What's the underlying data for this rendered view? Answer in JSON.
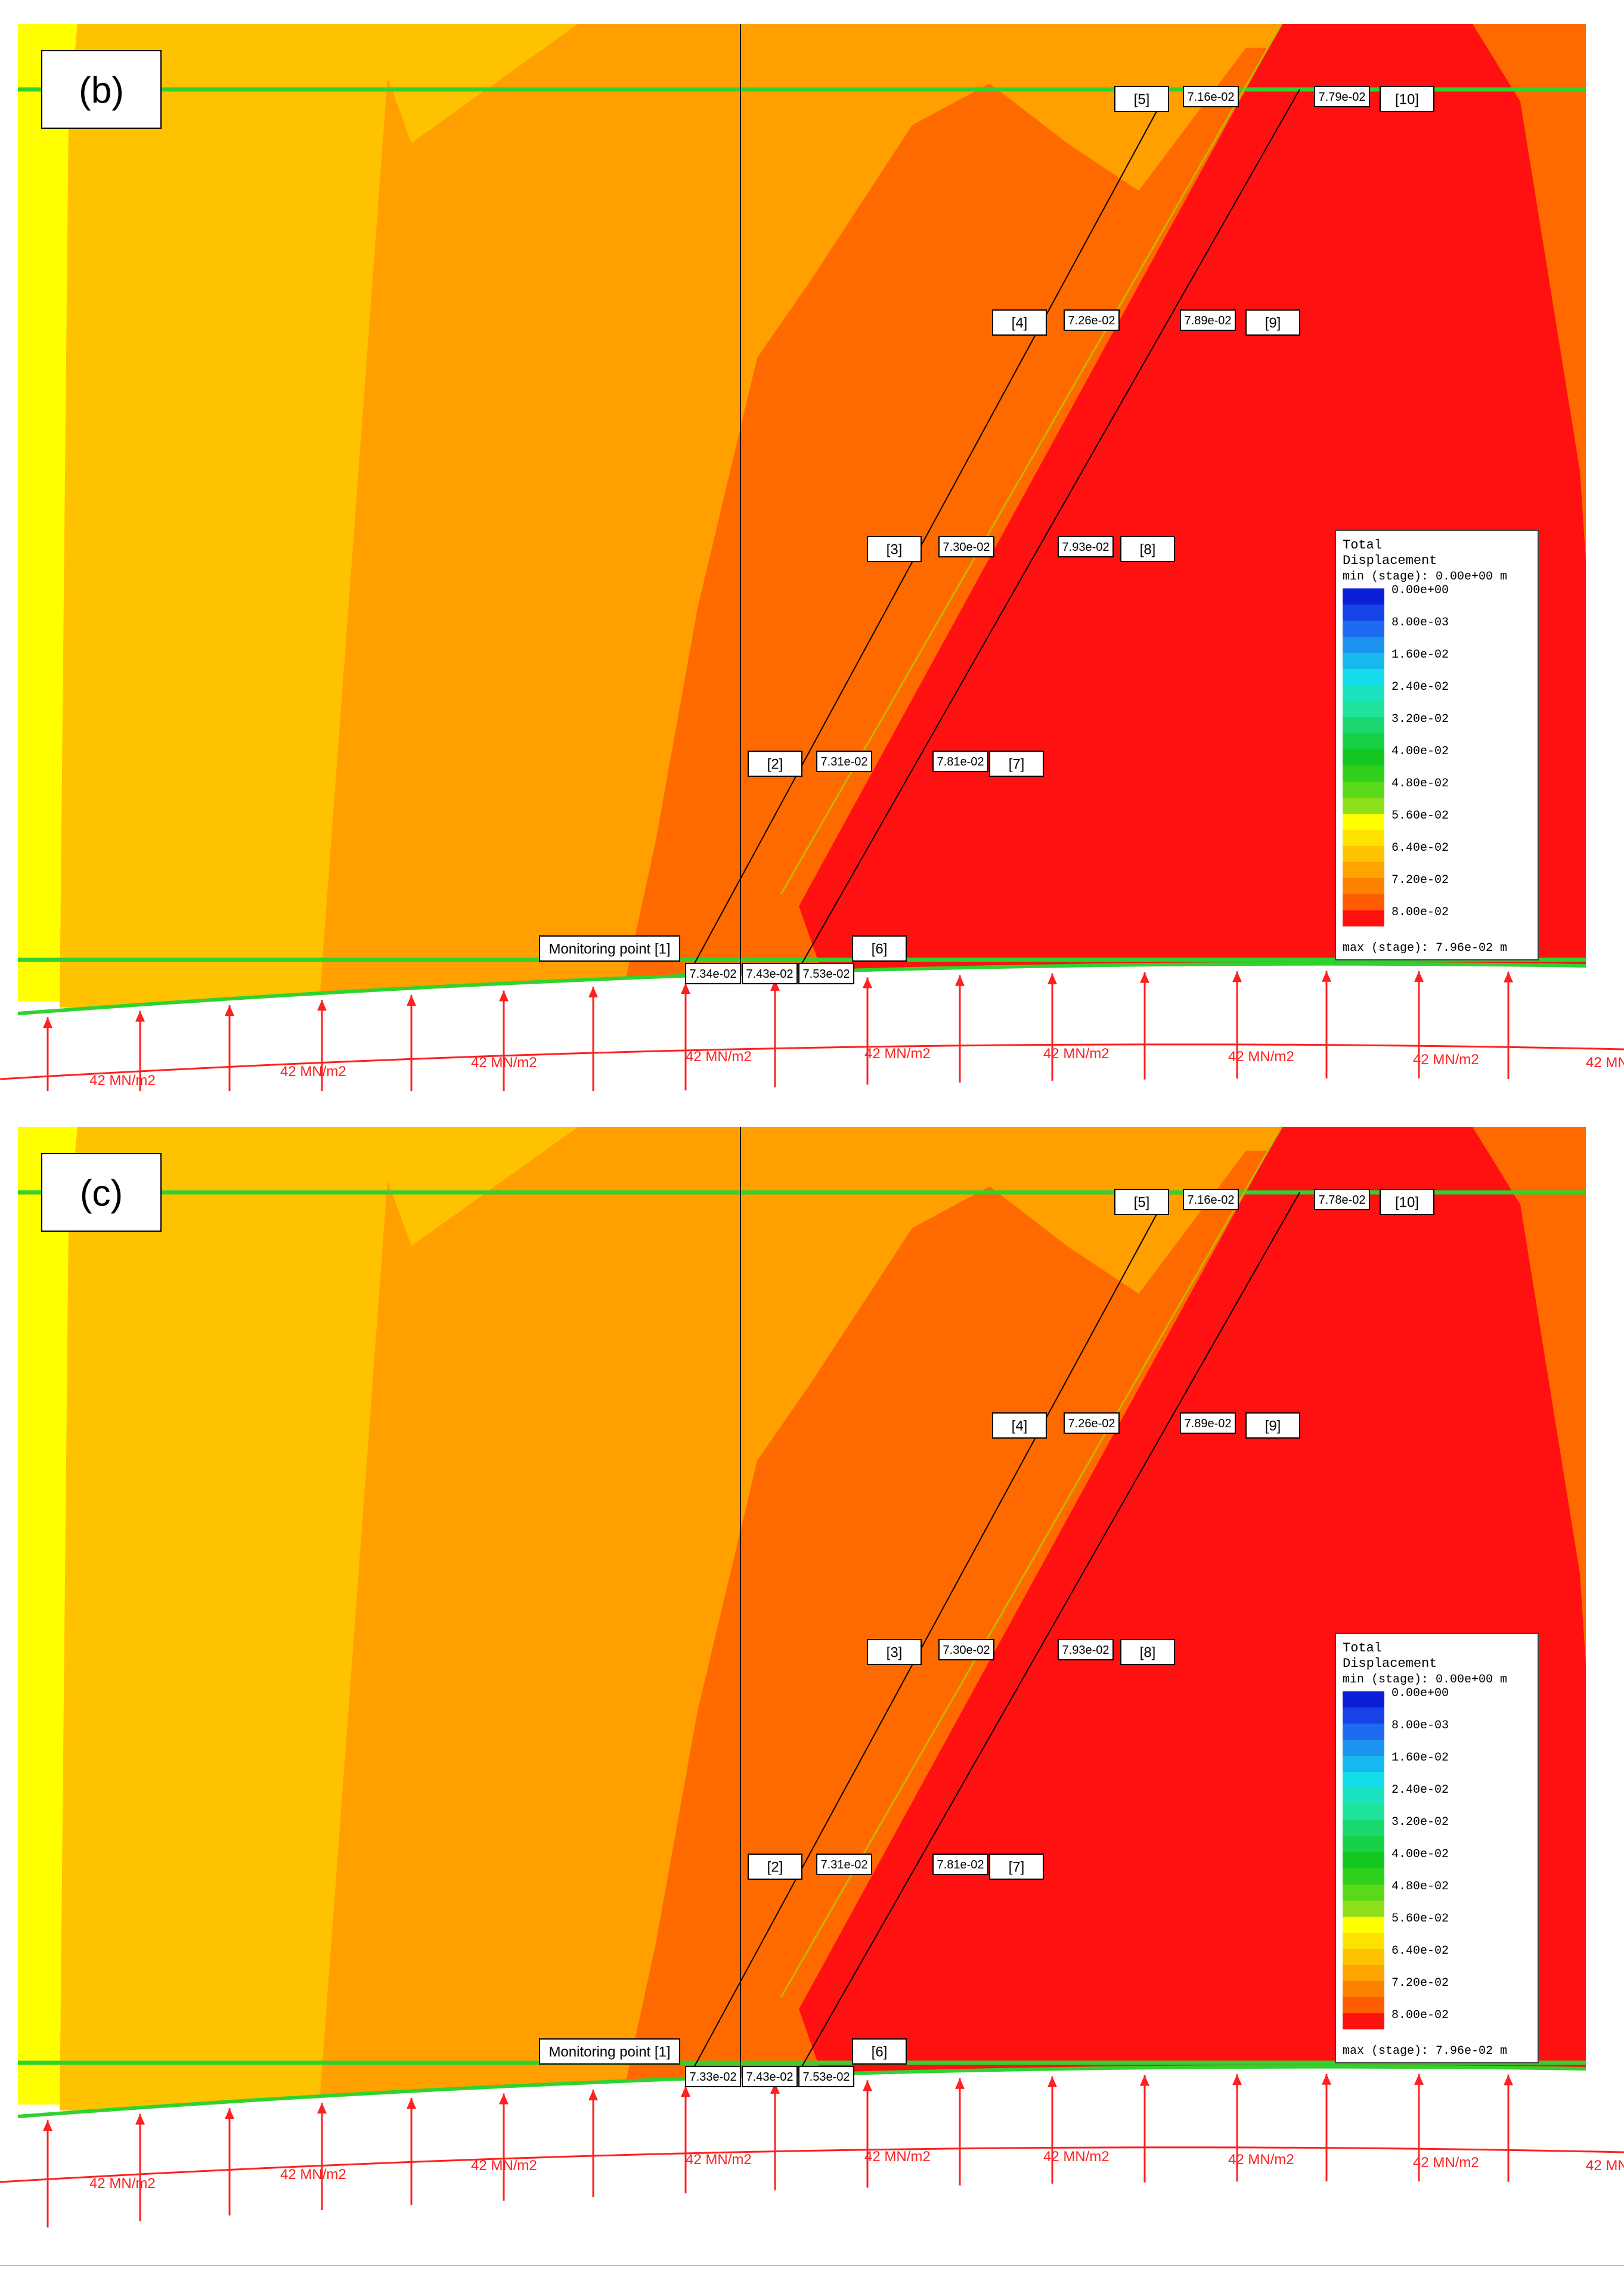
{
  "panels": [
    {
      "id": "b",
      "tag": "(b)",
      "monitoring_label": "Monitoring point [1]",
      "point_tags": [
        "[2]",
        "[3]",
        "[4]",
        "[5]",
        "[6]",
        "[7]",
        "[8]",
        "[9]",
        "[10]"
      ],
      "bottom_values": [
        "7.34e-02",
        "7.43e-02",
        "7.53e-02"
      ],
      "line1_values": [
        "7.31e-02",
        "7.30e-02",
        "7.26e-02",
        "7.16e-02"
      ],
      "line2_values": [
        "7.81e-02",
        "7.93e-02",
        "7.89e-02",
        "7.79e-02"
      ],
      "load_labels": [
        "42 MN/m2",
        "42 MN/m2",
        "42 MN/m2",
        "42 MN/m2",
        "42 MN/m2",
        "42 MN/m2",
        "42 MN/m2",
        "42 MN/m2",
        "42 MN/m2",
        "42"
      ]
    },
    {
      "id": "c",
      "tag": "(c)",
      "monitoring_label": "Monitoring point [1]",
      "point_tags": [
        "[2]",
        "[3]",
        "[4]",
        "[5]",
        "[6]",
        "[7]",
        "[8]",
        "[9]",
        "[10]"
      ],
      "bottom_values": [
        "7.33e-02",
        "7.43e-02",
        "7.53e-02"
      ],
      "line1_values": [
        "7.31e-02",
        "7.30e-02",
        "7.26e-02",
        "7.16e-02"
      ],
      "line2_values": [
        "7.81e-02",
        "7.93e-02",
        "7.89e-02",
        "7.78e-02"
      ],
      "load_labels": [
        "42 MN/m2",
        "42 MN/m2",
        "42 MN/m2",
        "42 MN/m2",
        "42 MN/m2",
        "42 MN/m2",
        "42 MN/m2",
        "42 MN/m2",
        "42 MN/m2",
        "4"
      ]
    }
  ],
  "legend": {
    "title_line1": "Total",
    "title_line2": "Displacement",
    "min_line": "min (stage): 0.00e+00 m",
    "max_line": "max (stage): 7.96e-02 m",
    "ticks": [
      "0.00e+00",
      "8.00e-03",
      "1.60e-02",
      "2.40e-02",
      "3.20e-02",
      "4.00e-02",
      "4.80e-02",
      "5.60e-02",
      "6.40e-02",
      "7.20e-02",
      "8.00e-02"
    ],
    "colors": [
      "#0a1fd6",
      "#1543e6",
      "#1e6af0",
      "#1b93ef",
      "#17b8ee",
      "#14dcea",
      "#1be3c0",
      "#1ee39a",
      "#19d86f",
      "#18d046",
      "#13c61f",
      "#2fd019",
      "#5ad91a",
      "#8fe01c",
      "#ffff00",
      "#ffe100",
      "#ffc200",
      "#ffa300",
      "#ff8100",
      "#ff5b00",
      "#ff1010"
    ]
  },
  "contour_colors": {
    "yellow": "#ffff00",
    "light_orange": "#ffc200",
    "orange": "#ff9f00",
    "dark_orange": "#ff6a00",
    "red": "#ff1111"
  }
}
